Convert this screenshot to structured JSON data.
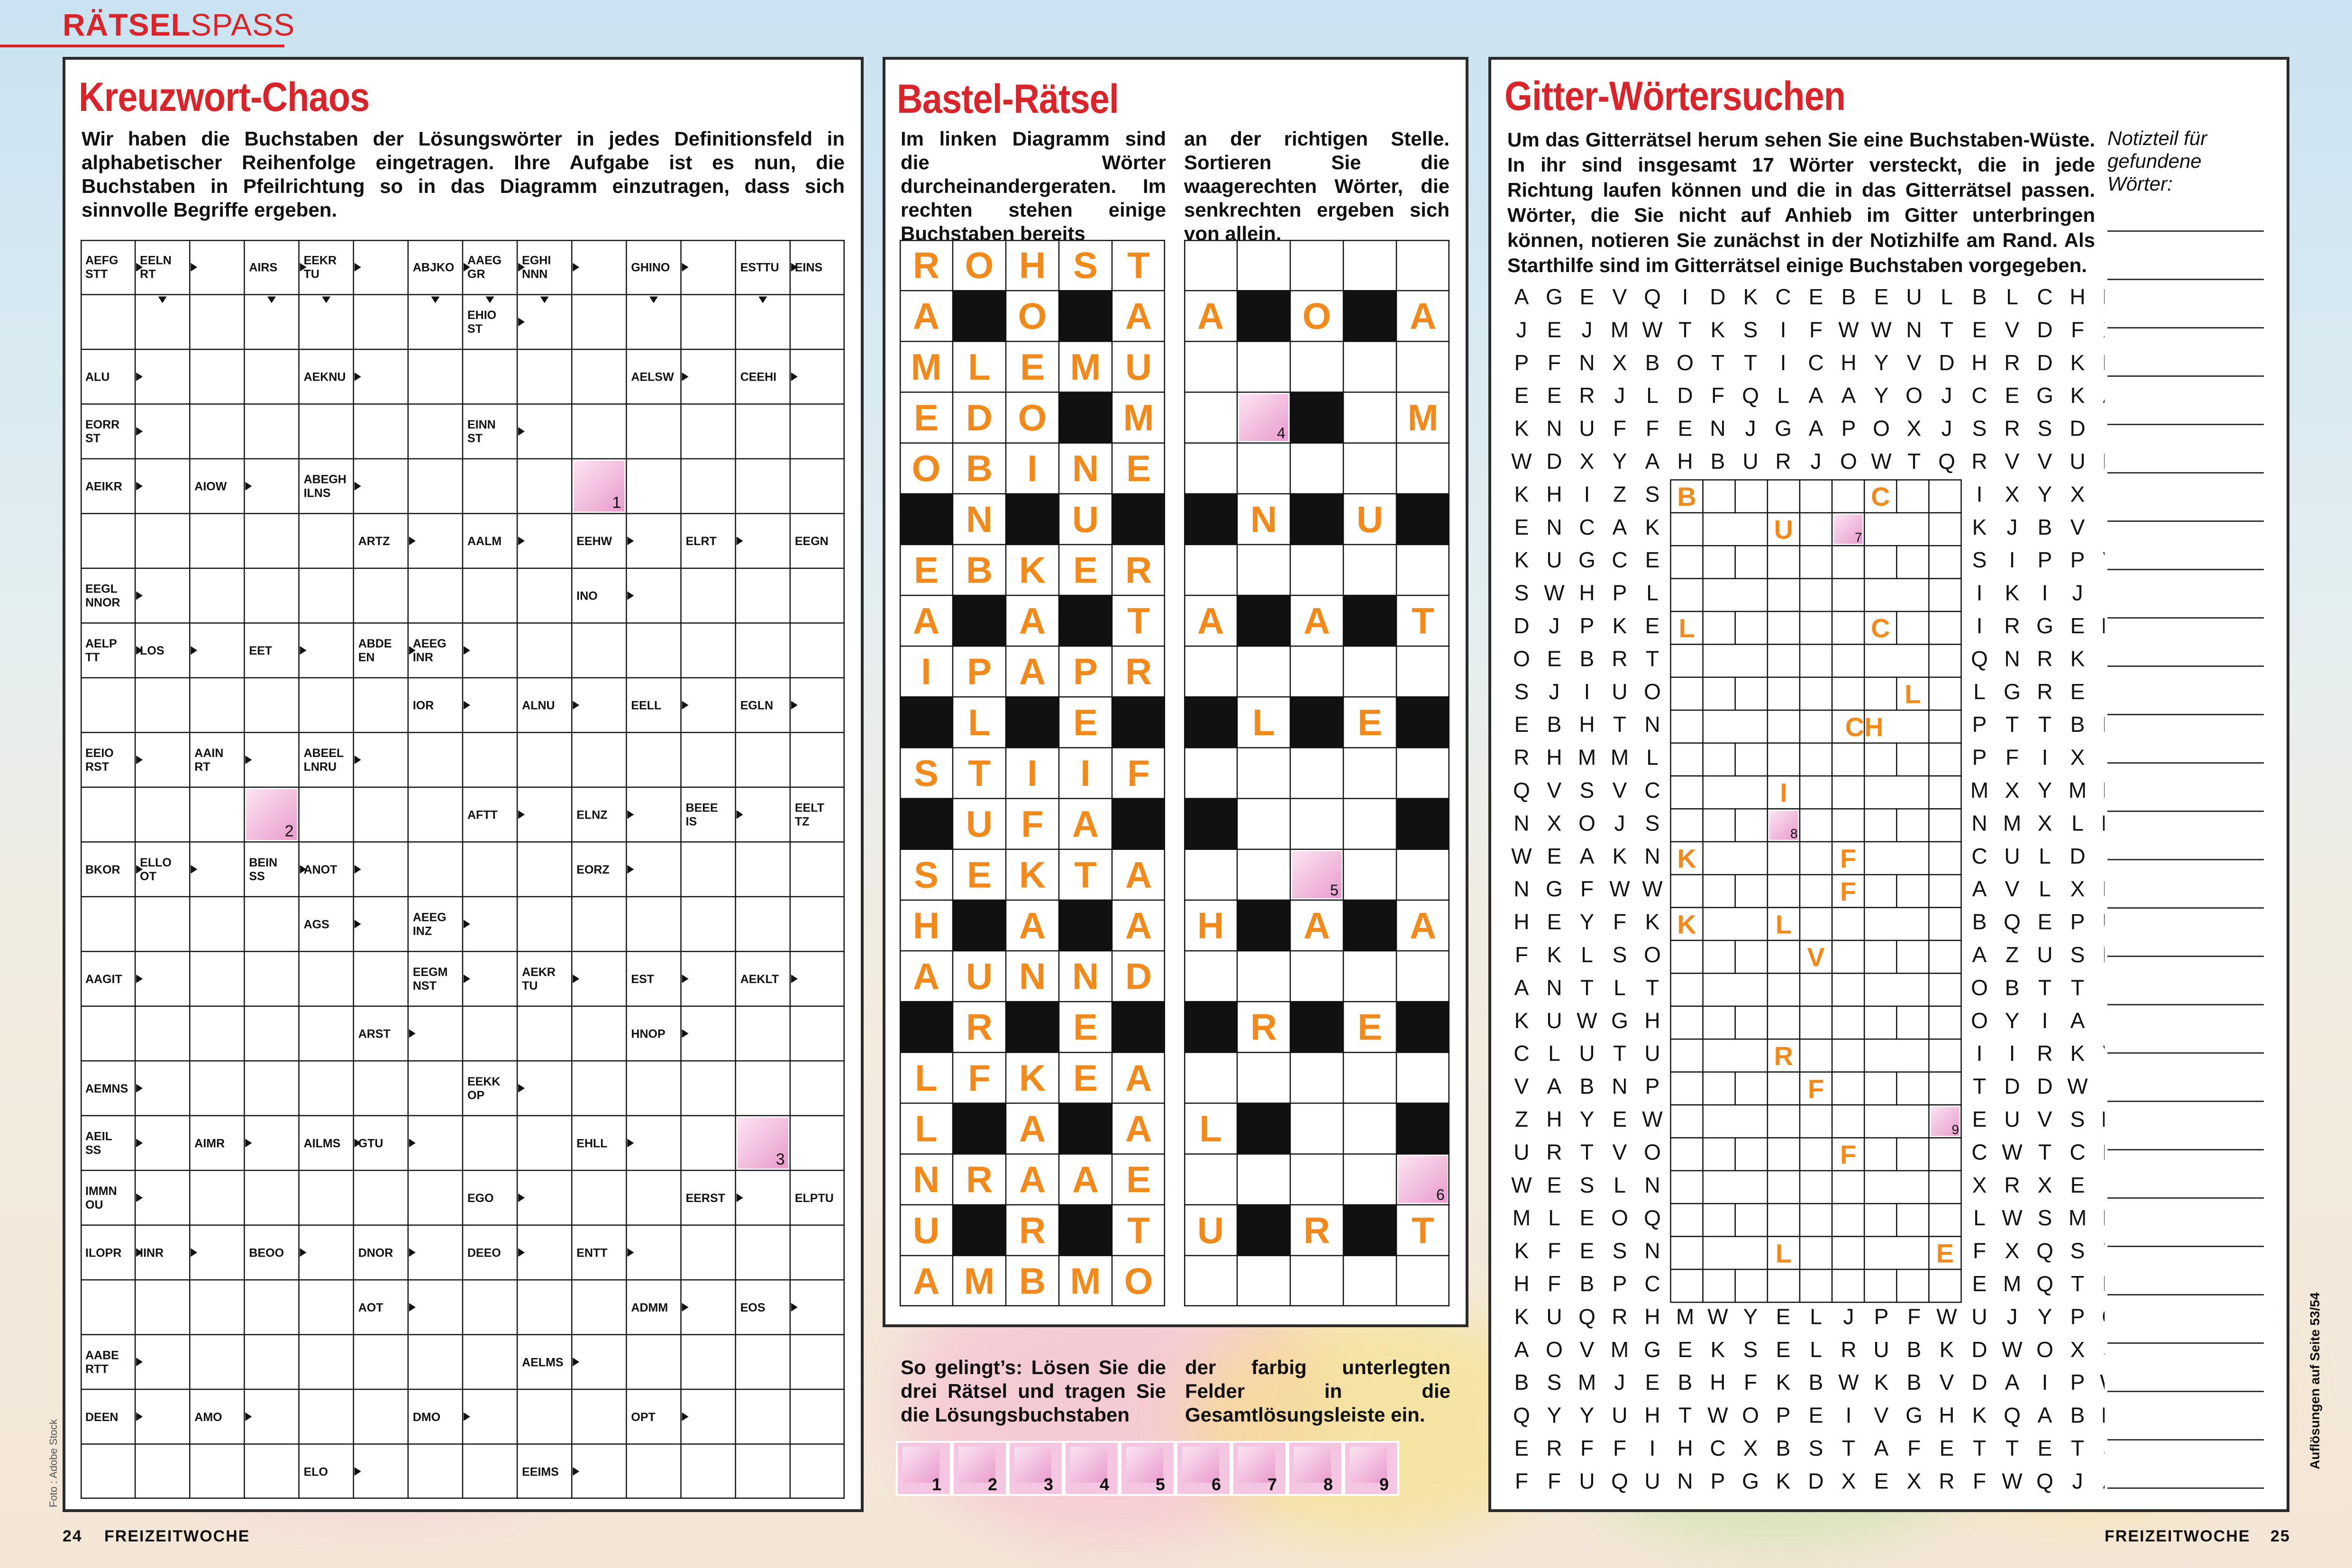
{
  "header": {
    "brand_bold": "RÄTSEL",
    "brand_thin": "SPASS"
  },
  "footer": {
    "left_page": "24",
    "left_mag": "FREIZEITWOCHE",
    "right_mag": "FREIZEITWOCHE",
    "right_page": "25"
  },
  "side_note": "Auflösungen auf Seite 53/54",
  "photo_credit": "Foto : Adobe Stock",
  "kreuzwort": {
    "title": "Kreuzwort-Chaos",
    "intro": "Wir haben die Buchstaben der Lösungswörter in jedes Definitionsfeld in alphabetischer Reihenfolge eingetragen. Ihre Aufgabe ist es nun, die Buchstaben in Pfeilrichtung so in das Diagramm einzutragen, dass sich sinnvolle Begriffe ergeben.",
    "cols": 14,
    "rows": 23,
    "clues": [
      [
        0,
        0,
        "AEFG\nSTT"
      ],
      [
        0,
        1,
        "EELN\nRT"
      ],
      [
        0,
        3,
        "AIRS"
      ],
      [
        0,
        4,
        "EEKR\nTU"
      ],
      [
        0,
        6,
        "ABJKO"
      ],
      [
        0,
        7,
        "AAEG\nGR"
      ],
      [
        0,
        8,
        "EGHI\nNNN"
      ],
      [
        0,
        10,
        "GHINO"
      ],
      [
        0,
        12,
        "ESTTU"
      ],
      [
        0,
        13,
        "EINS"
      ],
      [
        1,
        7,
        "EHIO\nST"
      ],
      [
        2,
        0,
        "ALU"
      ],
      [
        2,
        4,
        "AEKNU"
      ],
      [
        2,
        10,
        "AELSW"
      ],
      [
        2,
        12,
        "CEEHI"
      ],
      [
        3,
        0,
        "EORR\nST"
      ],
      [
        3,
        7,
        "EINN\nST"
      ],
      [
        4,
        0,
        "AEIKR"
      ],
      [
        4,
        2,
        "AIOW"
      ],
      [
        4,
        4,
        "ABEGH\nILNS"
      ],
      [
        5,
        5,
        "ARTZ"
      ],
      [
        5,
        7,
        "AALM"
      ],
      [
        5,
        9,
        "EEHW"
      ],
      [
        5,
        11,
        "ELRT"
      ],
      [
        5,
        13,
        "EEGN"
      ],
      [
        6,
        0,
        "EEGL\nNNOR"
      ],
      [
        6,
        9,
        "INO"
      ],
      [
        7,
        0,
        "AELP\nTT"
      ],
      [
        7,
        1,
        "LOS"
      ],
      [
        7,
        3,
        "EET"
      ],
      [
        7,
        5,
        "ABDE\nEN"
      ],
      [
        7,
        6,
        "AEEG\nINR"
      ],
      [
        8,
        6,
        "IOR"
      ],
      [
        8,
        8,
        "ALNU"
      ],
      [
        8,
        10,
        "EELL"
      ],
      [
        8,
        12,
        "EGLN"
      ],
      [
        9,
        0,
        "EEIO\nRST"
      ],
      [
        9,
        2,
        "AAIN\nRT"
      ],
      [
        9,
        4,
        "ABEEL\nLNRU"
      ],
      [
        10,
        7,
        "AFTT"
      ],
      [
        10,
        9,
        "ELNZ"
      ],
      [
        10,
        11,
        "BEEE\nIS"
      ],
      [
        10,
        13,
        "EELT\nTZ"
      ],
      [
        11,
        0,
        "BKOR"
      ],
      [
        11,
        1,
        "ELLO\nOT"
      ],
      [
        11,
        3,
        "BEIN\nSS"
      ],
      [
        11,
        4,
        "ANOT"
      ],
      [
        11,
        9,
        "EORZ"
      ],
      [
        12,
        4,
        "AGS"
      ],
      [
        12,
        6,
        "AEEG\nINZ"
      ],
      [
        13,
        0,
        "AAGIT"
      ],
      [
        13,
        6,
        "EEGM\nNST"
      ],
      [
        13,
        8,
        "AEKR\nTU"
      ],
      [
        13,
        10,
        "EST"
      ],
      [
        13,
        12,
        "AEKLT"
      ],
      [
        14,
        5,
        "ARST"
      ],
      [
        14,
        10,
        "HNOP"
      ],
      [
        15,
        0,
        "AEMNS"
      ],
      [
        15,
        7,
        "EEKK\nOP"
      ],
      [
        16,
        0,
        "AEIL\nSS"
      ],
      [
        16,
        2,
        "AIMR"
      ],
      [
        16,
        4,
        "AILMS"
      ],
      [
        16,
        5,
        "GTU"
      ],
      [
        16,
        9,
        "EHLL"
      ],
      [
        17,
        0,
        "IMMN\nOU"
      ],
      [
        17,
        7,
        "EGO"
      ],
      [
        17,
        11,
        "EERST"
      ],
      [
        17,
        13,
        "ELPTU"
      ],
      [
        18,
        0,
        "ILOPR"
      ],
      [
        18,
        1,
        "IINR"
      ],
      [
        18,
        3,
        "BEOO"
      ],
      [
        18,
        5,
        "DNOR"
      ],
      [
        18,
        7,
        "DEEO"
      ],
      [
        18,
        9,
        "ENTT"
      ],
      [
        19,
        5,
        "AOT"
      ],
      [
        19,
        10,
        "ADMM"
      ],
      [
        19,
        12,
        "EOS"
      ],
      [
        20,
        0,
        "AABE\nRTT"
      ],
      [
        20,
        8,
        "AELMS"
      ],
      [
        21,
        0,
        "DEEN"
      ],
      [
        21,
        2,
        "AMO"
      ],
      [
        21,
        6,
        "DMO"
      ],
      [
        21,
        10,
        "OPT"
      ],
      [
        22,
        4,
        "ELO"
      ],
      [
        22,
        8,
        "EEIMS"
      ]
    ],
    "solution_cells": [
      [
        4,
        9,
        "1"
      ],
      [
        10,
        3,
        "2"
      ],
      [
        16,
        12,
        "3"
      ]
    ]
  },
  "bastel": {
    "title": "Bastel-Rätsel",
    "intro_a": "Im linken Diagramm sind die Wörter durcheinandergeraten. Im rechten stehen einige Buchstaben bereits",
    "intro_b": "an der richtigen Stelle. Sortieren Sie die waagerechten Wörter, die senkrechten ergeben sich von allein.",
    "left_grid": [
      "ROHST",
      "A#O#A",
      "MLEMU",
      "EDO#M",
      "OBINE",
      "#N#U#",
      "EBKER",
      "A#A#T",
      "IPAPR",
      "#L#E#",
      "STIIF",
      "#UFA#",
      "SEKTA",
      "H#A#A",
      "AUNND",
      "#R#E#",
      "LFKEA",
      "L#A#A",
      "NRAAE",
      "U#R#T",
      "AMBMO"
    ],
    "right_grid": [
      "     ",
      "A#O#A",
      "     ",
      "  # M",
      "     ",
      "#N#U#",
      "     ",
      "A#A#T",
      "     ",
      "#L#E#",
      "     ",
      "#   #",
      "     ",
      "H#A#A",
      "     ",
      "#R#E#",
      "     ",
      "L#  #",
      "     ",
      "U#R#T",
      "     "
    ],
    "right_numbered": [
      [
        3,
        1,
        "4"
      ],
      [
        12,
        2,
        "5"
      ],
      [
        18,
        4,
        "6"
      ]
    ],
    "how_a": "So gelingt’s: Lösen Sie die drei Rätsel und tragen Sie die Lösungsbuchstaben",
    "how_b": "der farbig unterlegten Felder in die Gesamtlösungsleiste ein.",
    "solution_bar": [
      "1",
      "2",
      "3",
      "4",
      "5",
      "6",
      "7",
      "8",
      "9"
    ]
  },
  "gitter": {
    "title": "Gitter-Wörtersuchen",
    "intro": "Um das Gitterrätsel herum sehen Sie eine Buchstaben-Wüste. In ihr sind insgesamt 17 Wörter versteckt, die in jede Richtung laufen können und die in das Gitterrätsel passen. Wörter, die Sie nicht auf Anhieb im Gitter unterbringen können, notieren Sie zunächst in der Notizhilfe am Rand. Als Starthilfe sind im Gitterrätsel einige Buchstaben vorgegeben.",
    "notes_label": "Notizteil für gefundene Wörter:",
    "top_rows": [
      "AGEVQIDKCEBEULBLCHH",
      "JEJMWTKSIFWWNTEVDFX",
      "PFNXBOTTICHYVDHRDKH",
      "EERJLDFQLAAYOJCEGKA",
      "KNUFFENJGAPOXJSRSDF",
      "WDXYAHBURJOWTQRVVUD"
    ],
    "left_cols": [
      "KHIZS",
      "ENCAK",
      "KUGCE",
      "SWHPL",
      "DJPKE",
      "OEBRT",
      "SJIUO",
      "EBHTN",
      "RHMML",
      "QVSVC",
      "NXOJS",
      "WEAKN",
      "NGFWW",
      "HEYFK",
      "FKLSO",
      "ANTLT",
      "KUWGH",
      "CLUTU",
      "VABNP",
      "ZHYEW",
      "URTVO",
      "WESLN",
      "MLEOQ",
      "KFESN",
      "HFBPC"
    ],
    "right_cols": [
      "IXYXI",
      "KJBVJ",
      "SIPPV",
      "IKIJJ",
      "IRGEM",
      "QNRKF",
      "LGREI",
      "PTTBN",
      "PFIXI",
      "MXYMD",
      "NMXLM",
      "CULDE",
      "AVLXR",
      "BQEPU",
      "AZUSD",
      "OBTTE",
      "OYIAL",
      "IIRKV",
      "TDDWK",
      "EUVSM",
      "CWTCR",
      "XRXEP",
      "LWSMN",
      "FXQST",
      "EMQTN"
    ],
    "bottom_rows": [
      "KUQRHMWYELJPFWUJYPG",
      "AOVMGEKSELRUBKDWOXS",
      "BSMJEBHFKBWKBVDAIPW",
      "QYYUHTWOPEIVGHKQABM",
      "ERFFIHCXBSTAFETTETS",
      "FFUQUNPGKDXEXRFWQJA"
    ],
    "given": [
      [
        0,
        0,
        "B"
      ],
      [
        0,
        6,
        "C"
      ],
      [
        1,
        3,
        "U"
      ],
      [
        4,
        0,
        "L"
      ],
      [
        4,
        6,
        "C"
      ],
      [
        6,
        7,
        "L"
      ],
      [
        7,
        5,
        "CH"
      ],
      [
        9,
        3,
        "I"
      ],
      [
        11,
        0,
        "K"
      ],
      [
        11,
        5,
        "F"
      ],
      [
        12,
        5,
        "F"
      ],
      [
        13,
        0,
        "K"
      ],
      [
        13,
        3,
        "L"
      ],
      [
        14,
        4,
        "V"
      ],
      [
        17,
        3,
        "R"
      ],
      [
        18,
        4,
        "F"
      ],
      [
        20,
        5,
        "F"
      ],
      [
        23,
        3,
        "L"
      ],
      [
        23,
        8,
        "E"
      ]
    ],
    "numbered": [
      [
        1,
        5,
        "7"
      ],
      [
        10,
        3,
        "8"
      ],
      [
        19,
        8,
        "9"
      ]
    ]
  },
  "colors": {
    "accent": "#d7252b",
    "orange": "#f08a1c",
    "pink": "#f1b6da",
    "black": "#111111"
  }
}
